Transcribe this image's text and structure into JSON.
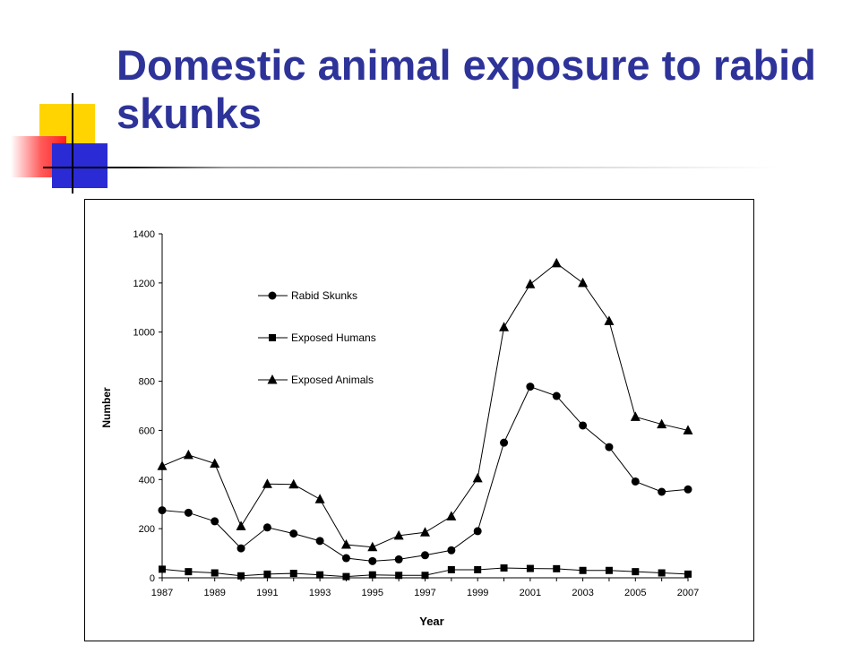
{
  "slide": {
    "title": "Domestic animal exposure to rabid skunks"
  },
  "colors": {
    "title": "#2e3399",
    "deco_yellow": "#ffd400",
    "deco_blue": "#2b2bd6",
    "deco_red": "#ff2020"
  },
  "chart_data": {
    "type": "line",
    "xlabel": "Year",
    "ylabel": "Number",
    "ylim": [
      0,
      1400
    ],
    "yticks": [
      "0",
      "200",
      "400",
      "600",
      "800",
      "1000",
      "1200",
      "1400"
    ],
    "xticks": [
      "1987",
      "1989",
      "1991",
      "1993",
      "1995",
      "1997",
      "1999",
      "2001",
      "2003",
      "2005",
      "2007"
    ],
    "grid": false,
    "legend": "upper-left-inside",
    "x": [
      1987,
      1988,
      1989,
      1990,
      1991,
      1992,
      1993,
      1994,
      1995,
      1996,
      1997,
      1998,
      1999,
      2000,
      2001,
      2002,
      2003,
      2004,
      2005,
      2006,
      2007
    ],
    "series": [
      {
        "name": "Rabid Skunks",
        "marker": "circle",
        "values": [
          275,
          265,
          230,
          120,
          205,
          180,
          150,
          80,
          68,
          75,
          92,
          112,
          190,
          550,
          778,
          740,
          620,
          532,
          392,
          350,
          360
        ]
      },
      {
        "name": "Exposed Humans",
        "marker": "square",
        "values": [
          35,
          25,
          20,
          8,
          15,
          18,
          12,
          5,
          12,
          10,
          10,
          33,
          33,
          40,
          38,
          37,
          30,
          30,
          25,
          20,
          15
        ]
      },
      {
        "name": "Exposed Animals",
        "marker": "triangle",
        "values": [
          455,
          500,
          465,
          210,
          382,
          380,
          320,
          135,
          125,
          172,
          185,
          250,
          405,
          1020,
          1195,
          1280,
          1200,
          1045,
          655,
          625,
          600
        ]
      }
    ]
  }
}
